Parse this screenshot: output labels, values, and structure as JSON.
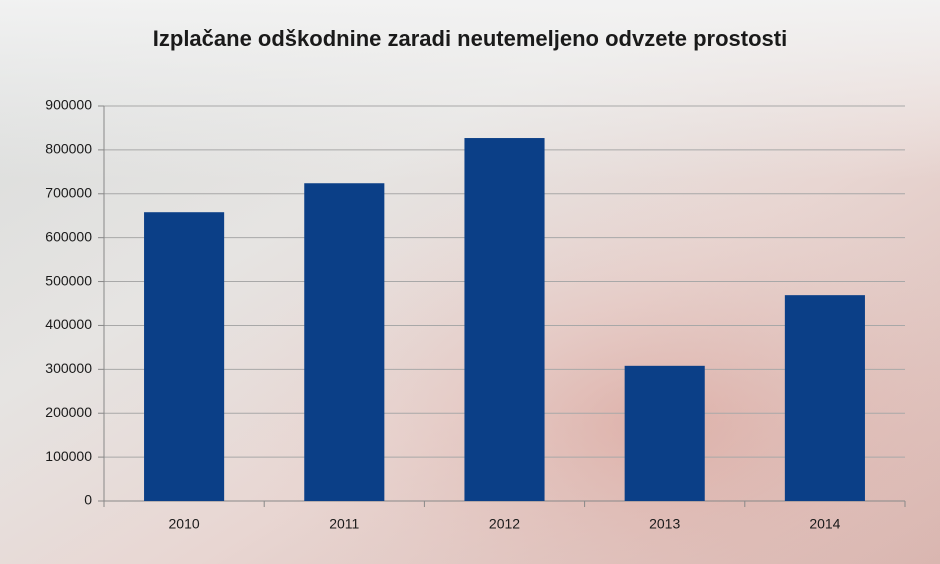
{
  "chart_data": {
    "type": "bar",
    "title": "Izplačane odškodnine zaradi neutemeljeno odvzete prostosti",
    "categories": [
      "2010",
      "2011",
      "2012",
      "2013",
      "2014"
    ],
    "values": [
      658000,
      724000,
      827000,
      308000,
      469000
    ],
    "color": "#0b3f87",
    "ylim": [
      0,
      900000
    ],
    "yticks": [
      0,
      100000,
      200000,
      300000,
      400000,
      500000,
      600000,
      700000,
      800000,
      900000
    ],
    "grid": true
  }
}
